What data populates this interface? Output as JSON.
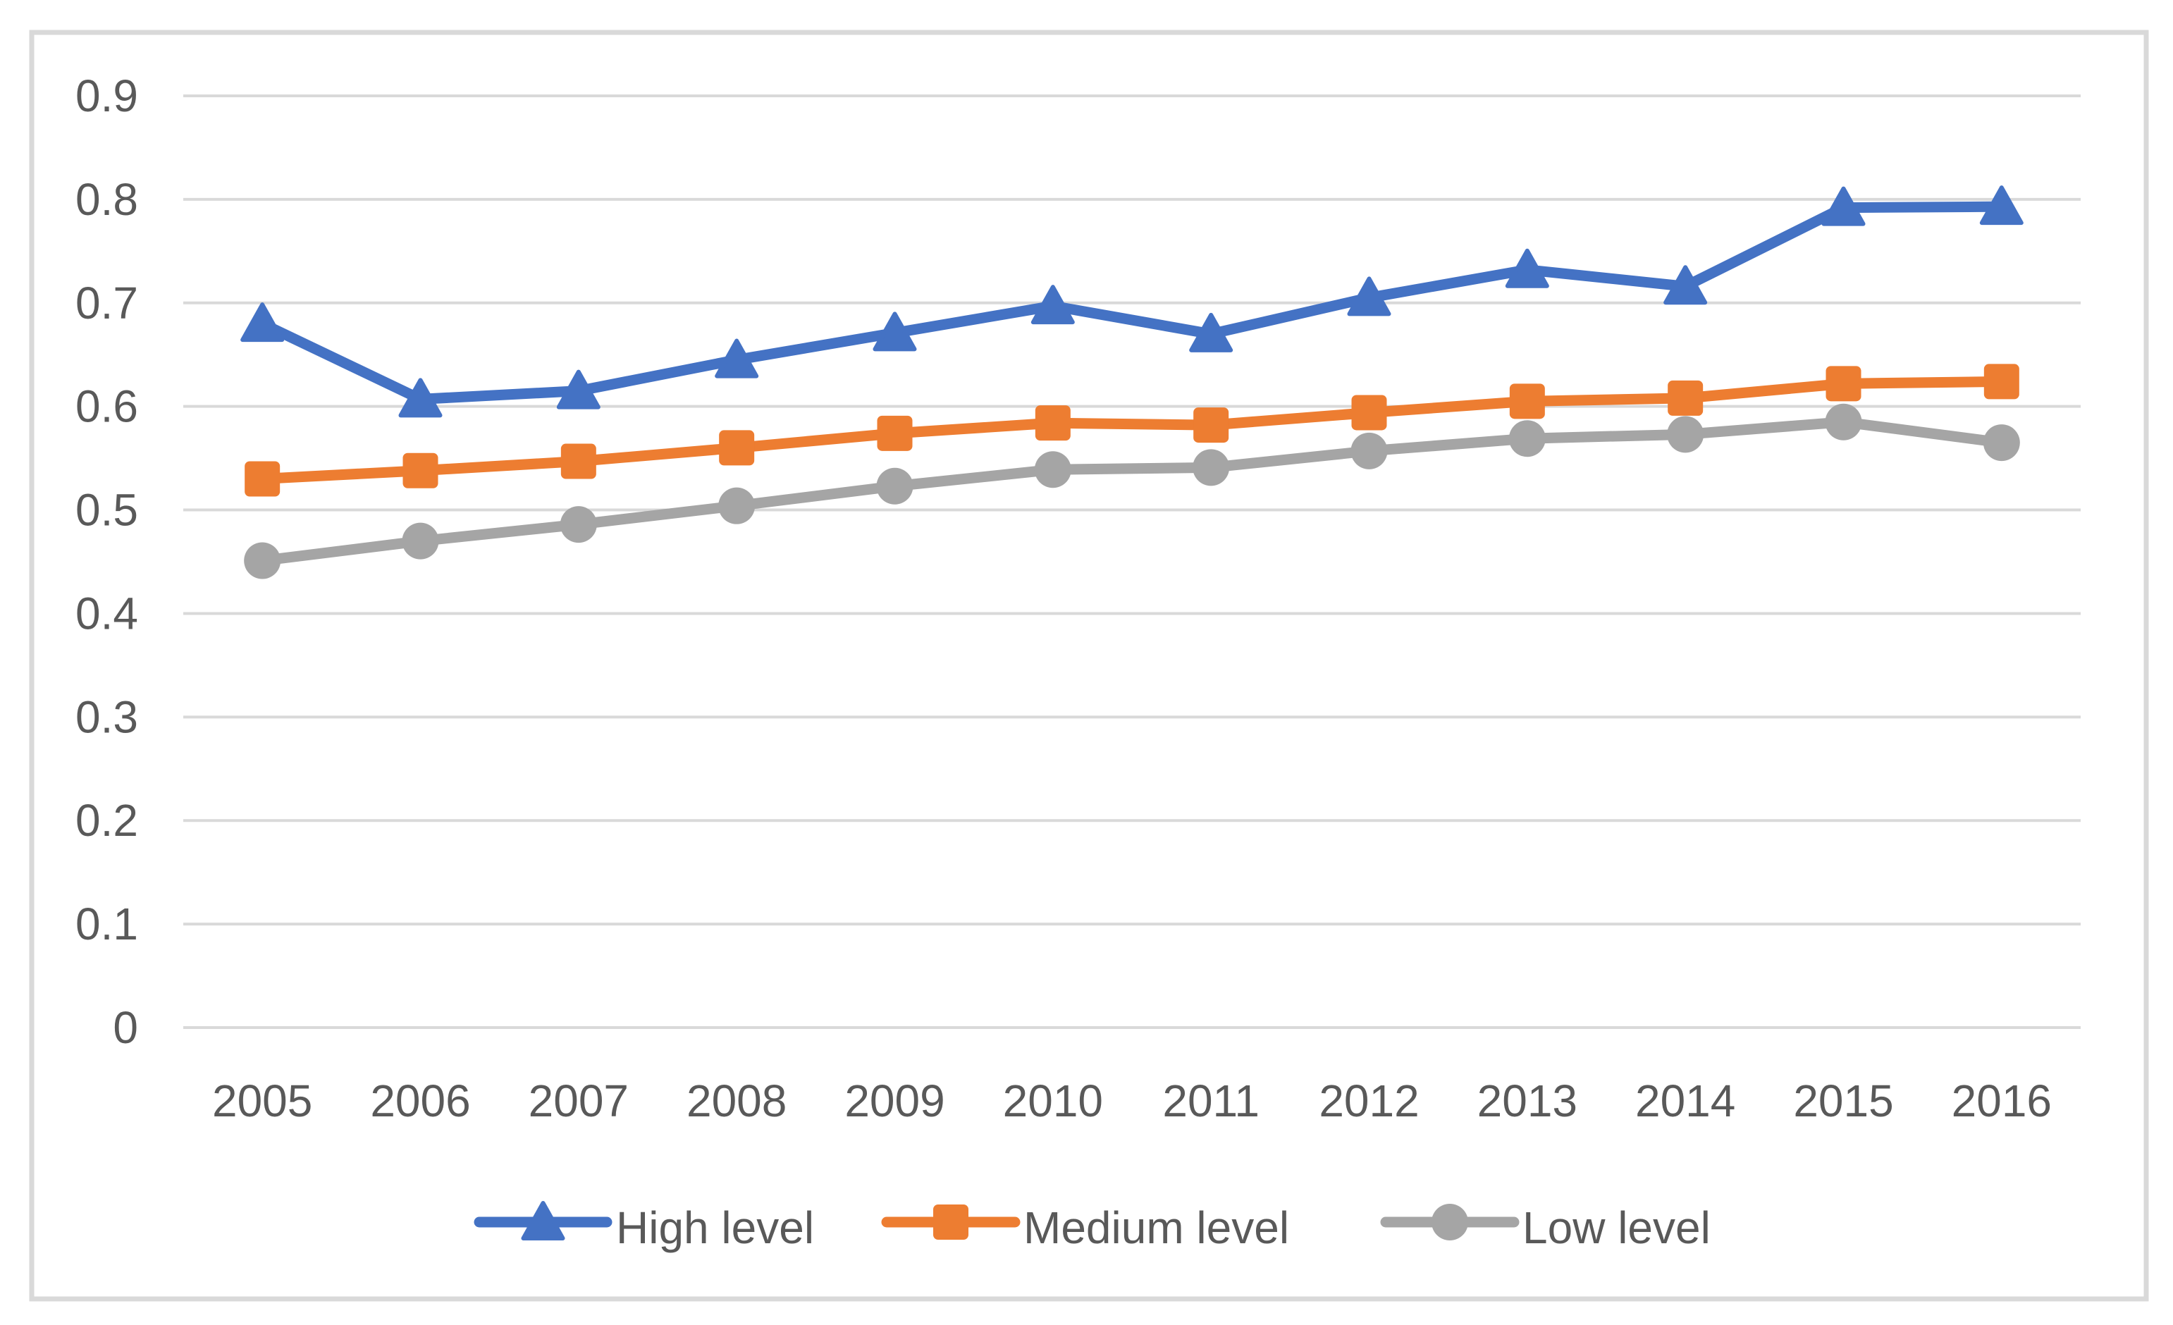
{
  "figure": {
    "background": "#ffffff",
    "border_color": "#d9d9d9"
  },
  "chart_data": {
    "type": "line",
    "title": "",
    "xlabel": "",
    "ylabel": "",
    "categories": [
      "2005",
      "2006",
      "2007",
      "2008",
      "2009",
      "2010",
      "2011",
      "2012",
      "2013",
      "2014",
      "2015",
      "2016"
    ],
    "series": [
      {
        "name": "High level",
        "color": "#4472C4",
        "marker": "triangle",
        "values": [
          0.68,
          0.607,
          0.615,
          0.645,
          0.671,
          0.697,
          0.67,
          0.705,
          0.732,
          0.716,
          0.792,
          0.793
        ]
      },
      {
        "name": "Medium level",
        "color": "#ED7D31",
        "marker": "square",
        "values": [
          0.53,
          0.538,
          0.547,
          0.56,
          0.574,
          0.584,
          0.582,
          0.594,
          0.605,
          0.608,
          0.622,
          0.624
        ]
      },
      {
        "name": "Low level",
        "color": "#A5A5A5",
        "marker": "circle",
        "values": [
          0.451,
          0.47,
          0.486,
          0.504,
          0.523,
          0.539,
          0.541,
          0.557,
          0.569,
          0.573,
          0.585,
          0.565
        ]
      }
    ],
    "ylim": [
      0,
      0.9
    ],
    "ytick_interval": 0.1,
    "ytick_labels": [
      "0",
      "0.1",
      "0.2",
      "0.3",
      "0.4",
      "0.5",
      "0.6",
      "0.7",
      "0.8",
      "0.9"
    ],
    "grid": true,
    "gridline_color": "#d9d9d9",
    "axis_text_color": "#595959",
    "legend_position": "bottom",
    "legend_labels": [
      "High level",
      "Medium level",
      "Low level"
    ]
  }
}
